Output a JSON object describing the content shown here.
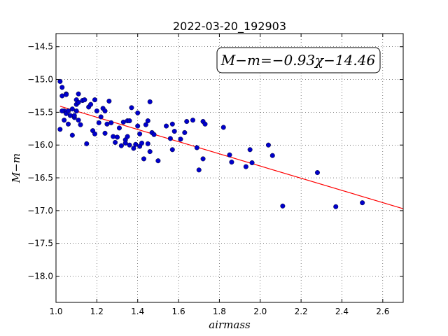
{
  "chart_data": {
    "type": "scatter",
    "title": "2022-03-20_192903",
    "xlabel": "airmass",
    "ylabel": "M−m",
    "xlim": [
      1.0,
      2.7
    ],
    "ylim": [
      -18.4,
      -14.3
    ],
    "y_inverted": true,
    "grid": true,
    "x_ticks": [
      1.0,
      1.2,
      1.4,
      1.6,
      1.8,
      2.0,
      2.2,
      2.4,
      2.6
    ],
    "x_tick_labels": [
      "1.0",
      "1.2",
      "1.4",
      "1.6",
      "1.8",
      "2.0",
      "2.2",
      "2.4",
      "2.6"
    ],
    "y_ticks": [
      -14.5,
      -15.0,
      -15.5,
      -16.0,
      -16.5,
      -17.0,
      -17.5,
      -18.0
    ],
    "y_tick_labels": [
      "−14.5",
      "−15.0",
      "−15.5",
      "−16.0",
      "−16.5",
      "−17.0",
      "−17.5",
      "−18.0"
    ],
    "annotation": "M−m=−0.93χ−14.46",
    "fit_line": {
      "slope": -0.93,
      "intercept": -14.46,
      "color": "#ff0000"
    },
    "point_color": "#0000cc",
    "series": [
      {
        "x": [
          1.02,
          1.03,
          1.03,
          1.04,
          1.05,
          1.02,
          1.03,
          1.05,
          1.04,
          1.06,
          1.06,
          1.05,
          1.07,
          1.08,
          1.09,
          1.08,
          1.1,
          1.1,
          1.11,
          1.09,
          1.1,
          1.12,
          1.11,
          1.11,
          1.13,
          1.14,
          1.15,
          1.16,
          1.17,
          1.18,
          1.19,
          1.19,
          1.2,
          1.21,
          1.22,
          1.23,
          1.24,
          1.24,
          1.25,
          1.26,
          1.27,
          1.28,
          1.29,
          1.3,
          1.31,
          1.32,
          1.33,
          1.34,
          1.34,
          1.35,
          1.35,
          1.36,
          1.37,
          1.38,
          1.39,
          1.4,
          1.4,
          1.41,
          1.41,
          1.42,
          1.43,
          1.44,
          1.45,
          1.46,
          1.46,
          1.47,
          1.48,
          1.5,
          1.54,
          1.56,
          1.57,
          1.57,
          1.58,
          1.61,
          1.63,
          1.64,
          1.67,
          1.69,
          1.7,
          1.72,
          1.72,
          1.73,
          1.82,
          1.85,
          1.86,
          1.93,
          1.95,
          1.96,
          2.04,
          2.06,
          2.11,
          2.28,
          2.37,
          2.5,
          1.36,
          1.45
        ],
        "y": [
          -15.03,
          -15.12,
          -15.25,
          -15.48,
          -15.22,
          -15.76,
          -15.48,
          -15.52,
          -15.62,
          -15.48,
          -15.68,
          -15.23,
          -15.55,
          -15.85,
          -15.58,
          -15.45,
          -15.31,
          -15.38,
          -15.62,
          -15.55,
          -15.48,
          -15.69,
          -15.22,
          -15.35,
          -15.32,
          -15.31,
          -15.98,
          -15.42,
          -15.38,
          -15.78,
          -15.83,
          -15.31,
          -15.48,
          -15.66,
          -15.57,
          -15.44,
          -15.48,
          -15.82,
          -15.68,
          -15.33,
          -15.66,
          -15.87,
          -15.96,
          -15.88,
          -15.74,
          -16.01,
          -15.65,
          -15.92,
          -15.97,
          -15.87,
          -15.63,
          -15.63,
          -15.43,
          -16.05,
          -15.99,
          -15.71,
          -15.51,
          -16.02,
          -15.83,
          -15.97,
          -16.21,
          -15.69,
          -15.63,
          -16.1,
          -15.34,
          -15.81,
          -15.84,
          -16.24,
          -15.71,
          -15.9,
          -15.68,
          -16.07,
          -15.79,
          -15.91,
          -15.81,
          -15.64,
          -15.62,
          -16.04,
          -16.38,
          -15.64,
          -16.21,
          -15.68,
          -15.73,
          -16.15,
          -16.26,
          -16.33,
          -16.07,
          -16.27,
          -16.0,
          -16.16,
          -16.93,
          -16.42,
          -16.94,
          -16.88,
          -16.0,
          -15.98
        ]
      }
    ]
  }
}
